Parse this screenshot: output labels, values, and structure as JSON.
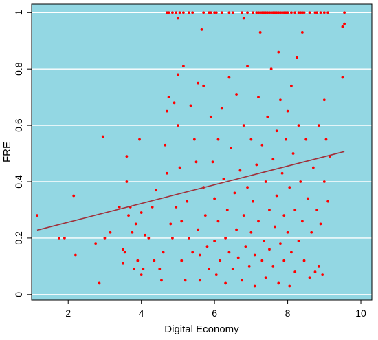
{
  "chart_data": {
    "type": "scatter",
    "title": "",
    "xlabel": "Digital Economy",
    "ylabel": "FRE",
    "xlim": [
      1,
      10.3
    ],
    "ylim": [
      -0.02,
      1.03
    ],
    "xticks": [
      2,
      4,
      6,
      8,
      10
    ],
    "yticks": [
      0,
      0.2,
      0.4,
      0.6,
      0.8,
      1
    ],
    "xtick_labels": [
      "2",
      "4",
      "6",
      "8",
      "10"
    ],
    "ytick_labels": [
      "0",
      "0.2",
      "0.4",
      "0.6",
      "0.8",
      "1"
    ],
    "grid": "horizontal",
    "background_color": "#93D7E3",
    "point_color": "#FF0000",
    "fit_line_color": "#A0303A",
    "fit_line": {
      "x": [
        1.15,
        9.55
      ],
      "y": [
        0.228,
        0.507
      ]
    },
    "series": [
      {
        "points": [
          [
            1.15,
            0.28
          ],
          [
            1.75,
            0.2
          ],
          [
            1.9,
            0.2
          ],
          [
            2.15,
            0.35
          ],
          [
            2.2,
            0.14
          ],
          [
            2.75,
            0.18
          ],
          [
            2.85,
            0.04
          ],
          [
            2.95,
            0.56
          ],
          [
            3.0,
            0.2
          ],
          [
            3.15,
            0.22
          ],
          [
            3.4,
            0.31
          ],
          [
            3.5,
            0.16
          ],
          [
            3.5,
            0.11
          ],
          [
            3.55,
            0.15
          ],
          [
            3.6,
            0.49
          ],
          [
            3.6,
            0.4
          ],
          [
            3.65,
            0.28
          ],
          [
            3.7,
            0.31
          ],
          [
            3.75,
            0.22
          ],
          [
            3.8,
            0.09
          ],
          [
            3.85,
            0.25
          ],
          [
            3.9,
            0.12
          ],
          [
            3.95,
            0.55
          ],
          [
            4.0,
            0.29
          ],
          [
            4.0,
            0.07
          ],
          [
            4.05,
            0.09
          ],
          [
            4.1,
            0.21
          ],
          [
            4.2,
            0.2
          ],
          [
            4.3,
            0.31
          ],
          [
            4.35,
            0.12
          ],
          [
            4.4,
            0.37
          ],
          [
            4.5,
            0.09
          ],
          [
            4.55,
            0.05
          ],
          [
            4.6,
            0.15
          ],
          [
            4.65,
            0.53
          ],
          [
            4.7,
            0.65
          ],
          [
            4.7,
            0.43
          ],
          [
            4.75,
            0.7
          ],
          [
            4.8,
            0.25
          ],
          [
            4.85,
            0.2
          ],
          [
            4.9,
            0.68
          ],
          [
            4.95,
            0.31
          ],
          [
            5.0,
            0.78
          ],
          [
            5.0,
            0.6
          ],
          [
            5.05,
            0.45
          ],
          [
            5.1,
            0.26
          ],
          [
            5.1,
            0.12
          ],
          [
            5.15,
            0.81
          ],
          [
            5.2,
            0.05
          ],
          [
            5.25,
            0.33
          ],
          [
            5.3,
            0.2
          ],
          [
            5.35,
            0.67
          ],
          [
            5.4,
            0.15
          ],
          [
            5.45,
            0.55
          ],
          [
            5.5,
            0.47
          ],
          [
            5.55,
            0.75
          ],
          [
            5.55,
            0.23
          ],
          [
            5.6,
            0.14
          ],
          [
            5.6,
            0.05
          ],
          [
            5.65,
            0.94
          ],
          [
            5.7,
            0.74
          ],
          [
            5.7,
            0.38
          ],
          [
            5.75,
            0.28
          ],
          [
            5.8,
            0.17
          ],
          [
            5.85,
            0.09
          ],
          [
            5.9,
            0.63
          ],
          [
            5.95,
            0.47
          ],
          [
            6.0,
            0.34
          ],
          [
            6.0,
            0.19
          ],
          [
            6.05,
            0.07
          ],
          [
            6.1,
            0.55
          ],
          [
            6.1,
            0.26
          ],
          [
            6.15,
            0.12
          ],
          [
            6.2,
            0.66
          ],
          [
            6.25,
            0.41
          ],
          [
            6.3,
            0.2
          ],
          [
            6.3,
            0.04
          ],
          [
            6.35,
            0.3
          ],
          [
            6.4,
            0.77
          ],
          [
            6.4,
            0.15
          ],
          [
            6.45,
            0.52
          ],
          [
            6.5,
            0.09
          ],
          [
            6.55,
            0.36
          ],
          [
            6.6,
            0.23
          ],
          [
            6.6,
            0.71
          ],
          [
            6.65,
            0.13
          ],
          [
            6.7,
            0.44
          ],
          [
            6.75,
            0.05
          ],
          [
            6.8,
            0.6
          ],
          [
            6.8,
            0.28
          ],
          [
            6.85,
            0.17
          ],
          [
            6.9,
            0.81
          ],
          [
            6.9,
            0.38
          ],
          [
            6.95,
            0.1
          ],
          [
            7.0,
            0.55
          ],
          [
            7.0,
            0.22
          ],
          [
            7.05,
            0.33
          ],
          [
            7.1,
            0.14
          ],
          [
            7.1,
            0.03
          ],
          [
            7.15,
            0.46
          ],
          [
            7.2,
            0.7
          ],
          [
            7.2,
            0.26
          ],
          [
            7.25,
            0.93
          ],
          [
            7.3,
            0.12
          ],
          [
            7.3,
            0.53
          ],
          [
            7.35,
            0.19
          ],
          [
            7.4,
            0.4
          ],
          [
            7.4,
            0.06
          ],
          [
            7.45,
            0.63
          ],
          [
            7.5,
            0.3
          ],
          [
            7.5,
            0.16
          ],
          [
            7.55,
            0.8
          ],
          [
            7.6,
            0.48
          ],
          [
            7.6,
            0.1
          ],
          [
            7.65,
            0.24
          ],
          [
            7.7,
            0.58
          ],
          [
            7.7,
            0.35
          ],
          [
            7.75,
            0.86
          ],
          [
            7.75,
            0.04
          ],
          [
            7.8,
            0.69
          ],
          [
            7.8,
            0.18
          ],
          [
            7.85,
            0.43
          ],
          [
            7.9,
            0.28
          ],
          [
            7.9,
            0.12
          ],
          [
            7.95,
            0.55
          ],
          [
            8.0,
            0.65
          ],
          [
            8.0,
            0.22
          ],
          [
            8.05,
            0.03
          ],
          [
            8.05,
            0.38
          ],
          [
            8.1,
            0.74
          ],
          [
            8.1,
            0.15
          ],
          [
            8.15,
            0.5
          ],
          [
            8.2,
            0.3
          ],
          [
            8.2,
            0.08
          ],
          [
            8.25,
            0.84
          ],
          [
            8.3,
            0.6
          ],
          [
            8.3,
            0.19
          ],
          [
            8.35,
            0.4
          ],
          [
            8.4,
            0.93
          ],
          [
            8.4,
            0.26
          ],
          [
            8.45,
            0.12
          ],
          [
            8.5,
            0.55
          ],
          [
            8.55,
            0.34
          ],
          [
            8.6,
            0.06
          ],
          [
            8.65,
            0.22
          ],
          [
            8.7,
            0.45
          ],
          [
            8.75,
            0.08
          ],
          [
            8.8,
            0.3
          ],
          [
            8.85,
            0.6
          ],
          [
            8.85,
            0.1
          ],
          [
            8.9,
            0.25
          ],
          [
            8.95,
            0.07
          ],
          [
            9.0,
            0.69
          ],
          [
            9.0,
            0.4
          ],
          [
            9.05,
            0.55
          ],
          [
            9.1,
            0.33
          ],
          [
            9.15,
            0.49
          ],
          [
            9.5,
            0.95
          ],
          [
            9.5,
            0.77
          ],
          [
            9.55,
            0.96
          ],
          [
            4.7,
            1.0
          ],
          [
            4.75,
            1.0
          ],
          [
            4.85,
            1.0
          ],
          [
            4.95,
            1.0
          ],
          [
            5.0,
            0.98
          ],
          [
            5.05,
            1.0
          ],
          [
            5.15,
            1.0
          ],
          [
            5.3,
            1.0
          ],
          [
            5.4,
            1.0
          ],
          [
            5.7,
            1.0
          ],
          [
            5.85,
            1.0
          ],
          [
            5.9,
            1.0
          ],
          [
            6.0,
            1.0
          ],
          [
            6.05,
            1.0
          ],
          [
            6.2,
            1.0
          ],
          [
            6.4,
            1.0
          ],
          [
            6.5,
            1.0
          ],
          [
            6.75,
            1.0
          ],
          [
            6.8,
            0.98
          ],
          [
            6.9,
            1.0
          ],
          [
            7.05,
            1.0
          ],
          [
            7.15,
            1.0
          ],
          [
            7.2,
            1.0
          ],
          [
            7.25,
            1.0
          ],
          [
            7.3,
            1.0
          ],
          [
            7.35,
            1.0
          ],
          [
            7.4,
            1.0
          ],
          [
            7.45,
            1.0
          ],
          [
            7.5,
            1.0
          ],
          [
            7.55,
            1.0
          ],
          [
            7.6,
            1.0
          ],
          [
            7.65,
            1.0
          ],
          [
            7.7,
            1.0
          ],
          [
            7.75,
            1.0
          ],
          [
            7.8,
            1.0
          ],
          [
            7.85,
            1.0
          ],
          [
            7.9,
            1.0
          ],
          [
            7.95,
            1.0
          ],
          [
            8.0,
            1.0
          ],
          [
            8.1,
            1.0
          ],
          [
            8.2,
            1.0
          ],
          [
            8.3,
            1.0
          ],
          [
            8.35,
            1.0
          ],
          [
            8.4,
            1.0
          ],
          [
            8.45,
            1.0
          ],
          [
            8.6,
            1.0
          ],
          [
            8.75,
            1.0
          ],
          [
            8.8,
            1.0
          ],
          [
            8.9,
            1.0
          ],
          [
            9.0,
            1.0
          ],
          [
            9.1,
            1.0
          ],
          [
            9.55,
            1.0
          ]
        ]
      }
    ]
  }
}
